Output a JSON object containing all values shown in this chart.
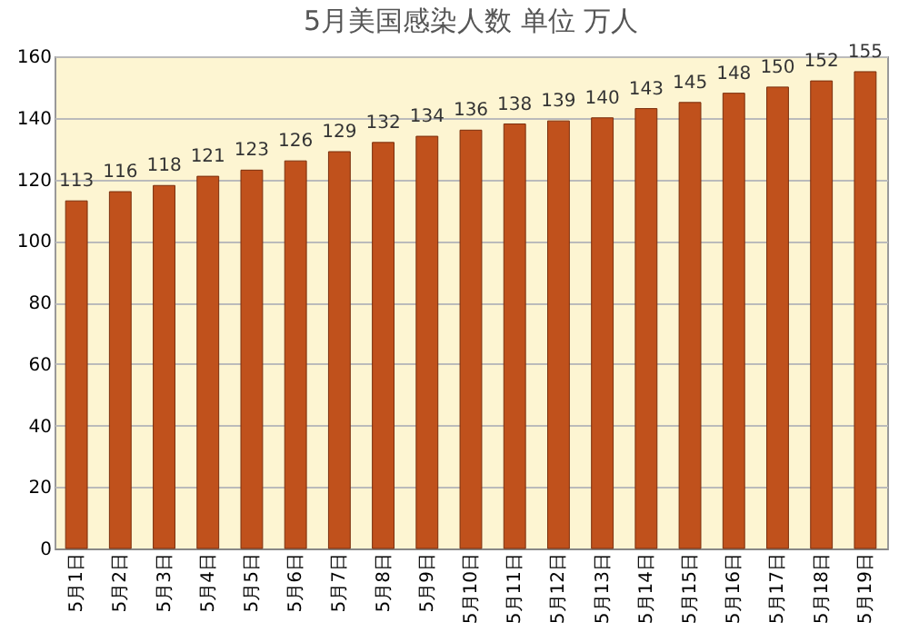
{
  "chart_data": {
    "type": "bar",
    "title": "5月美国感染人数 单位 万人",
    "categories": [
      "5月1日",
      "5月2日",
      "5月3日",
      "5月4日",
      "5月5日",
      "5月6日",
      "5月7日",
      "5月8日",
      "5月9日",
      "5月10日",
      "5月11日",
      "5月12日",
      "5月13日",
      "5月14日",
      "5月15日",
      "5月16日",
      "5月17日",
      "5月18日",
      "5月19日"
    ],
    "values": [
      113,
      116,
      118,
      121,
      123,
      126,
      129,
      132,
      134,
      136,
      138,
      139,
      140,
      143,
      145,
      148,
      150,
      152,
      155
    ],
    "color": "#c0511c",
    "ylim": [
      0,
      160
    ],
    "yticks": [
      0,
      20,
      40,
      60,
      80,
      100,
      120,
      140,
      160
    ],
    "grid": "y",
    "data_labels": true
  }
}
